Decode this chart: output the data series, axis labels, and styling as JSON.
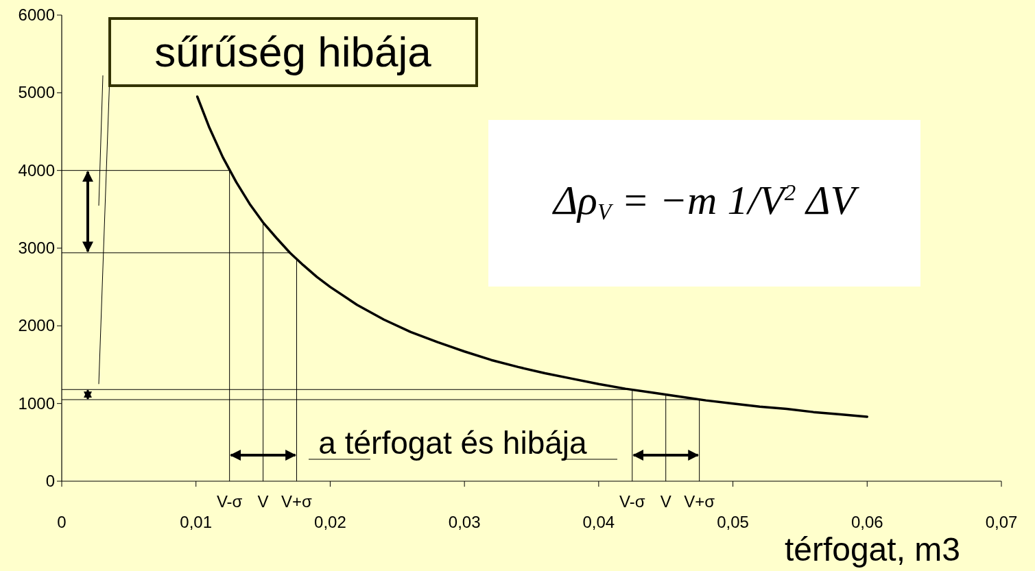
{
  "chart_data": {
    "type": "line",
    "title": "sűrűség hibája",
    "xlabel": "térfogat, m3",
    "annotations": [
      "a térfogat és hibája",
      "Δρ$_{V}$ = −m 1/V$^{2}$ ΔV"
    ],
    "x": [
      0.0101,
      0.011,
      0.012,
      0.013,
      0.014,
      0.015,
      0.016,
      0.017,
      0.018,
      0.019,
      0.02,
      0.022,
      0.024,
      0.026,
      0.028,
      0.03,
      0.032,
      0.034,
      0.036,
      0.038,
      0.04,
      0.042,
      0.044,
      0.046,
      0.048,
      0.05,
      0.052,
      0.054,
      0.056,
      0.058,
      0.06
    ],
    "series": [
      {
        "color": "#000000",
        "values": [
          4950,
          4550,
          4170,
          3850,
          3570,
          3330,
          3130,
          2940,
          2780,
          2630,
          2500,
          2270,
          2080,
          1920,
          1790,
          1670,
          1560,
          1470,
          1390,
          1320,
          1250,
          1190,
          1140,
          1090,
          1040,
          1000,
          960,
          930,
          890,
          860,
          830
        ]
      }
    ],
    "xlim": [
      0,
      0.07
    ],
    "ylim": [
      0,
      6000
    ],
    "xticks": [
      {
        "value": 0,
        "label": "0"
      },
      {
        "value": 0.01,
        "label": "0,01"
      },
      {
        "value": 0.02,
        "label": "0,02"
      },
      {
        "value": 0.03,
        "label": "0,03"
      },
      {
        "value": 0.04,
        "label": "0,04"
      },
      {
        "value": 0.05,
        "label": "0,05"
      },
      {
        "value": 0.06,
        "label": "0,06"
      },
      {
        "value": 0.07,
        "label": "0,07"
      }
    ],
    "yticks": [
      0,
      1000,
      2000,
      3000,
      4000,
      5000,
      6000
    ],
    "ref_lines": [
      {
        "axis": "x",
        "value": 0.0125,
        "label": "V-σ"
      },
      {
        "axis": "x",
        "value": 0.015,
        "label": "V"
      },
      {
        "axis": "x",
        "value": 0.0175,
        "label": "V+σ"
      },
      {
        "axis": "x",
        "value": 0.0425,
        "label": "V-σ"
      },
      {
        "axis": "x",
        "value": 0.045,
        "label": "V"
      },
      {
        "axis": "x",
        "value": 0.0475,
        "label": "V+σ"
      },
      {
        "axis": "y",
        "value": 4000
      },
      {
        "axis": "y",
        "value": 2940
      },
      {
        "axis": "y",
        "value": 1180
      },
      {
        "axis": "y",
        "value": 1050
      }
    ],
    "grid": false,
    "marker": "none",
    "line_style": "solid"
  }
}
